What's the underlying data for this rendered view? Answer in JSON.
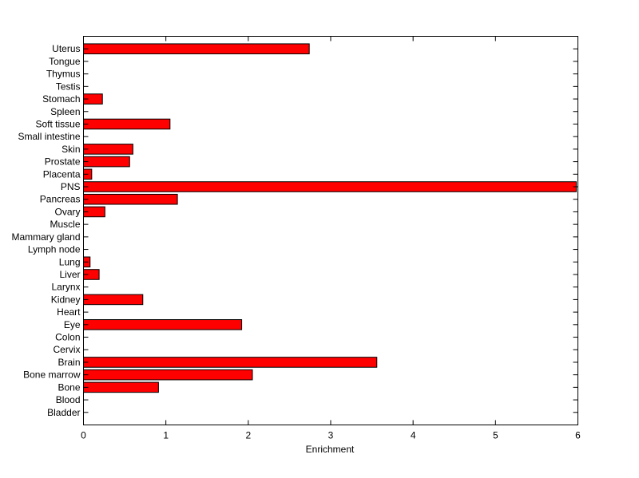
{
  "chart_data": {
    "type": "bar",
    "orientation": "horizontal",
    "categories": [
      "Bladder",
      "Blood",
      "Bone",
      "Bone marrow",
      "Brain",
      "Cervix",
      "Colon",
      "Eye",
      "Heart",
      "Kidney",
      "Larynx",
      "Liver",
      "Lung",
      "Lymph node",
      "Mammary gland",
      "Muscle",
      "Ovary",
      "Pancreas",
      "PNS",
      "Placenta",
      "Prostate",
      "Skin",
      "Small intestine",
      "Soft tissue",
      "Spleen",
      "Stomach",
      "Testis",
      "Thymus",
      "Tongue",
      "Uterus"
    ],
    "values": [
      0,
      0,
      0.91,
      2.05,
      3.56,
      0,
      0,
      1.92,
      0,
      0.72,
      0,
      0.19,
      0.08,
      0,
      0,
      0,
      0.26,
      1.14,
      5.98,
      0.1,
      0.56,
      0.6,
      0,
      1.05,
      0,
      0.23,
      0,
      0,
      0,
      2.74
    ],
    "xlabel": "Enrichment",
    "xlim": [
      0,
      6
    ],
    "xticks": [
      0,
      1,
      2,
      3,
      4,
      5,
      6
    ],
    "bar_color": "#ff0000",
    "grid": false
  }
}
